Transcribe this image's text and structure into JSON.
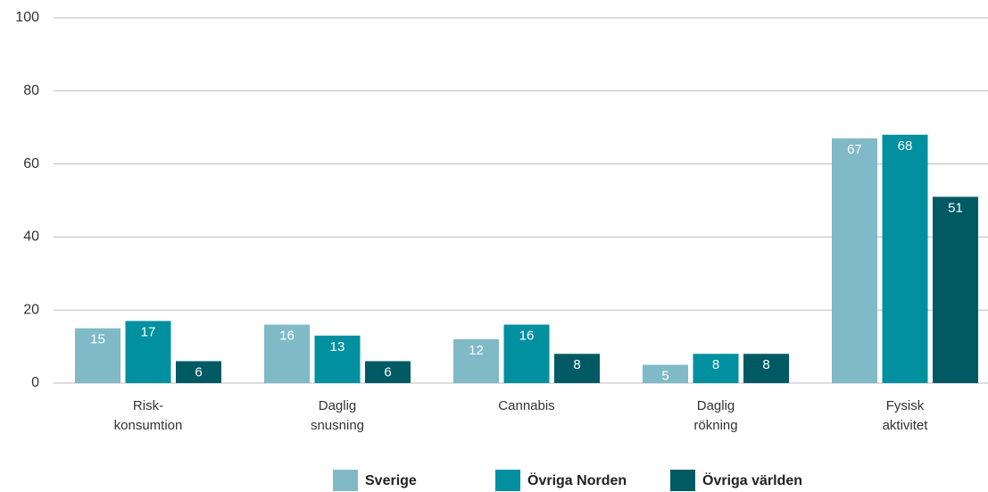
{
  "chart_data": {
    "type": "bar",
    "categories": [
      "Risk-\nkonsumtion",
      "Daglig\nsnusning",
      "Cannabis",
      "Daglig\nrökning",
      "Fysisk\naktivitet"
    ],
    "series": [
      {
        "name": "Sverige",
        "color": "#7fbac6",
        "values": [
          15,
          16,
          12,
          5,
          67
        ]
      },
      {
        "name": "Övriga Norden",
        "color": "#0090a0",
        "values": [
          17,
          13,
          16,
          8,
          68
        ]
      },
      {
        "name": "Övriga världen",
        "color": "#005a63",
        "values": [
          6,
          6,
          8,
          8,
          51
        ]
      }
    ],
    "ylim": [
      0,
      100
    ],
    "yticks": [
      0,
      20,
      40,
      60,
      80,
      100
    ],
    "grid": true,
    "legend": "bottom"
  }
}
